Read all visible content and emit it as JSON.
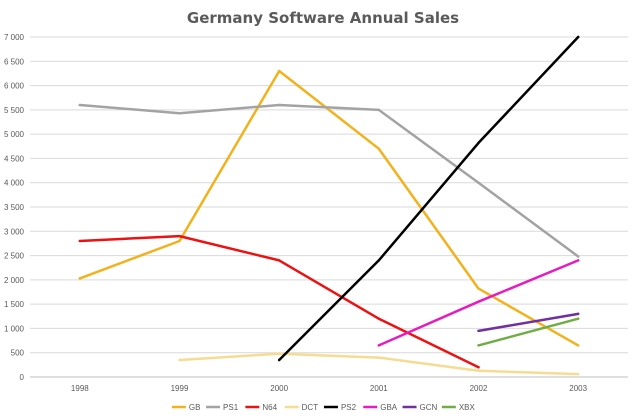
{
  "chart_data": {
    "type": "line",
    "title": "Germany Software Annual Sales",
    "xlabel": "",
    "ylabel": "",
    "categories": [
      "1998",
      "1999",
      "2000",
      "2001",
      "2002",
      "2003"
    ],
    "ylim": [
      0,
      7000
    ],
    "yticks": [
      0,
      500,
      1000,
      1500,
      2000,
      2500,
      3000,
      3500,
      4000,
      4500,
      5000,
      5500,
      6000,
      6500,
      7000
    ],
    "ytick_labels": [
      "0",
      "500",
      "1 000",
      "1 500",
      "2 000",
      "2 500",
      "3 000",
      "3 500",
      "4 000",
      "4 500",
      "5 000",
      "5 500",
      "6 000",
      "6 500",
      "7 000"
    ],
    "grid": true,
    "legend_position": "bottom",
    "series": [
      {
        "name": "GB",
        "color": "#f2b21b",
        "values": [
          2030,
          2800,
          6300,
          4700,
          1820,
          650
        ]
      },
      {
        "name": "PS1",
        "color": "#a3a3a3",
        "values": [
          5600,
          5430,
          5600,
          5500,
          4000,
          2480
        ]
      },
      {
        "name": "N64",
        "color": "#ee1111",
        "values": [
          2800,
          2900,
          2400,
          1200,
          200,
          null
        ]
      },
      {
        "name": "DCT",
        "color": "#f5dc92",
        "values": [
          null,
          350,
          480,
          400,
          130,
          60
        ]
      },
      {
        "name": "PS2",
        "color": "#000000",
        "values": [
          null,
          null,
          350,
          2400,
          4820,
          7000
        ]
      },
      {
        "name": "GBA",
        "color": "#e61cc0",
        "values": [
          null,
          null,
          null,
          650,
          1550,
          2400
        ]
      },
      {
        "name": "GCN",
        "color": "#7030a0",
        "values": [
          null,
          null,
          null,
          null,
          950,
          1300
        ]
      },
      {
        "name": "XBX",
        "color": "#70ad47",
        "values": [
          null,
          null,
          null,
          null,
          650,
          1200
        ]
      }
    ]
  }
}
